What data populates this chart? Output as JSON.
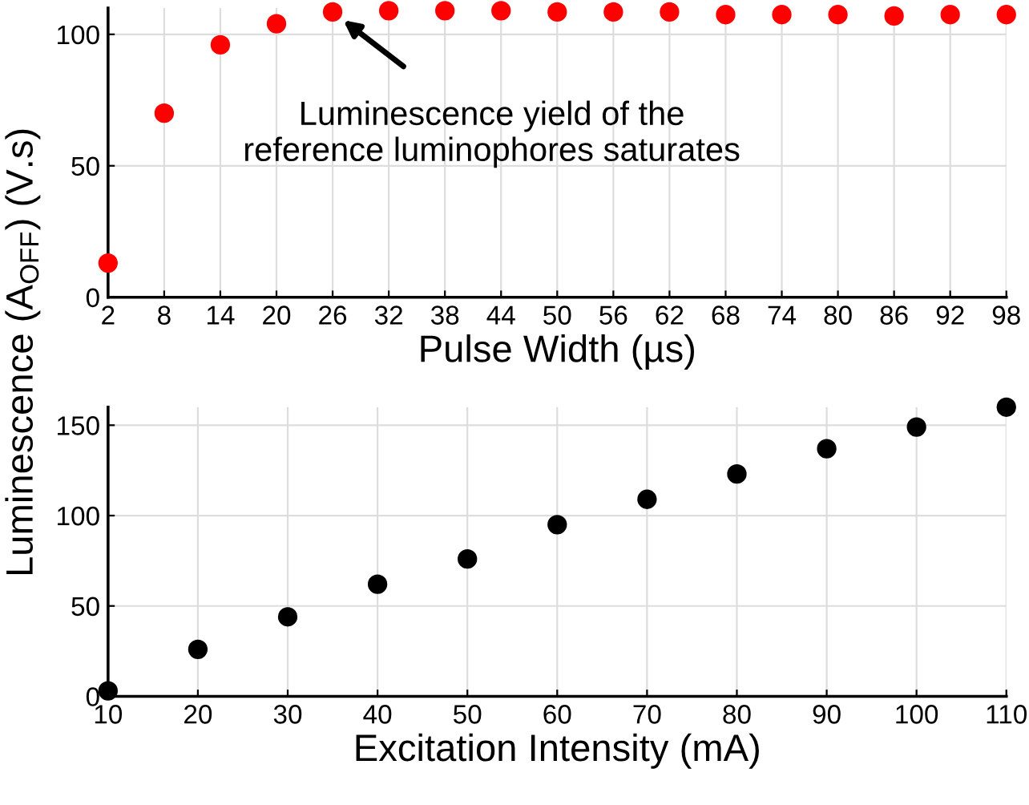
{
  "chart_data": [
    {
      "type": "scatter",
      "xlabel": "Pulse Width (µs)",
      "ylabel": "Luminescence (A$_{OFF}$) (V.s)",
      "x": [
        2,
        8,
        14,
        20,
        26,
        32,
        38,
        44,
        50,
        56,
        62,
        68,
        74,
        80,
        86,
        92,
        98
      ],
      "series": [
        {
          "color": "#ff0000",
          "values": [
            13,
            70,
            96,
            104,
            108.5,
            109,
            109,
            109,
            108.5,
            108.5,
            108.5,
            107.5,
            107.5,
            107.5,
            107,
            107.5,
            107.5
          ]
        }
      ],
      "xlim": [
        2,
        98
      ],
      "xticks": [
        2,
        8,
        14,
        20,
        26,
        32,
        38,
        44,
        50,
        56,
        62,
        68,
        74,
        80,
        86,
        92,
        98
      ],
      "ylim": [
        0,
        110
      ],
      "yticks": [
        0,
        50,
        100
      ],
      "annotations": [
        {
          "text": "Luminescence yield of the\nreference luminophores saturates",
          "x": 26,
          "y": 108.5
        }
      ],
      "grid": true,
      "marker": "circle"
    },
    {
      "type": "scatter",
      "xlabel": "Excitation Intensity (mA)",
      "x": [
        10,
        20,
        30,
        40,
        50,
        60,
        70,
        80,
        90,
        100,
        110
      ],
      "series": [
        {
          "color": "#000000",
          "values": [
            3,
            26,
            44,
            62,
            76,
            95,
            109,
            123,
            137,
            149,
            160
          ]
        }
      ],
      "xlim": [
        10,
        110
      ],
      "xticks": [
        10,
        20,
        30,
        40,
        50,
        60,
        70,
        80,
        90,
        100,
        110
      ],
      "ylim": [
        0,
        160
      ],
      "yticks": [
        0,
        50,
        100,
        150
      ],
      "grid": true,
      "marker": "circle"
    }
  ]
}
